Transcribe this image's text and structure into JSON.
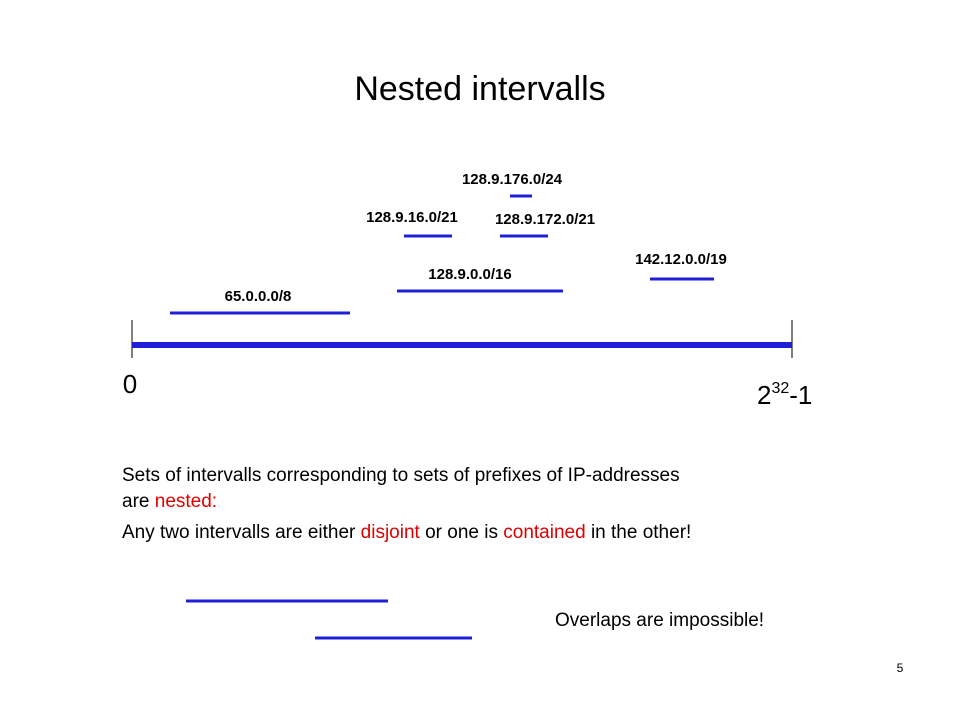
{
  "title": "Nested intervalls",
  "intervals": [
    {
      "label": "128.9.176.0/24"
    },
    {
      "label": "128.9.16.0/21"
    },
    {
      "label": "128.9.172.0/21"
    },
    {
      "label": "142.12.0.0/19"
    },
    {
      "label": "128.9.0.0/16"
    },
    {
      "label": "65.0.0.0/8"
    }
  ],
  "axis": {
    "start": "0",
    "end_base": "2",
    "end_exponent": "32",
    "end_suffix": "-1"
  },
  "text": {
    "line1": "Sets of intervalls corresponding to sets of prefixes of IP-addresses",
    "line2": [
      "are ",
      "nested:"
    ],
    "line3": [
      "Any two intervalls are either ",
      "disjoint",
      " or one is ",
      "contained",
      " in the other!"
    ]
  },
  "note": "Overlaps are impossible!",
  "page_number": "5"
}
